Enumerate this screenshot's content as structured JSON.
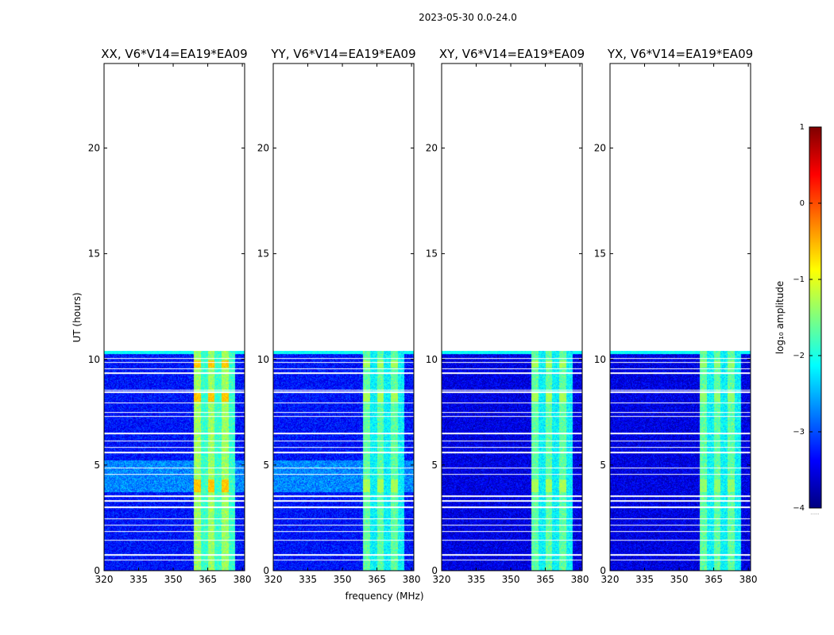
{
  "figure": {
    "suptitle": "2023-05-30 0.0-24.0",
    "xlabel": "frequency (MHz)",
    "ylabel": "UT (hours)"
  },
  "colors": {
    "cmap": [
      "#00007f",
      "#0000ff",
      "#007fff",
      "#00ffff",
      "#7fff7f",
      "#ffff00",
      "#ff7f00",
      "#ff0000",
      "#7f0000"
    ],
    "gap": "#ffffff",
    "axes": "#000000"
  },
  "chart_data": [
    {
      "type": "heatmap",
      "title": "XX, V6*V14=EA19*EA09",
      "xlim": [
        320,
        381
      ],
      "ylim": [
        0,
        24
      ],
      "xticks": [
        320,
        335,
        350,
        365,
        380
      ],
      "yticks": [
        0,
        5,
        10,
        15,
        20
      ],
      "data_ut_range": [
        0,
        10.4
      ],
      "bright_band_mhz": [
        359,
        377
      ],
      "background_log10_amp": -3.3,
      "band_log10_amp": -1.5,
      "peak_log10_amp": -0.6,
      "elevated_background_ut": [
        [
          3.7,
          5.2
        ]
      ],
      "gaps_ut": [
        0.5,
        0.75,
        1.45,
        1.85,
        2.15,
        2.45,
        3.0,
        3.3,
        3.5,
        3.55,
        4.55,
        4.85,
        5.6,
        5.85,
        6.15,
        6.5,
        7.3,
        7.5,
        7.95,
        8.45,
        8.55,
        9.35,
        9.55,
        9.85,
        10.05
      ]
    },
    {
      "type": "heatmap",
      "title": "YY, V6*V14=EA19*EA09",
      "xlim": [
        320,
        381
      ],
      "ylim": [
        0,
        24
      ],
      "xticks": [
        320,
        335,
        350,
        365,
        380
      ],
      "yticks": [
        0,
        5,
        10,
        15,
        20
      ],
      "data_ut_range": [
        0,
        10.4
      ],
      "bright_band_mhz": [
        359,
        377
      ],
      "background_log10_amp": -3.3,
      "band_log10_amp": -1.8,
      "peak_log10_amp": -1.3,
      "elevated_background_ut": [
        [
          3.7,
          5.2
        ]
      ],
      "gaps_ut": [
        0.5,
        0.75,
        1.45,
        1.85,
        2.15,
        2.45,
        3.0,
        3.3,
        3.5,
        3.55,
        4.55,
        4.85,
        5.6,
        5.85,
        6.15,
        6.5,
        7.3,
        7.5,
        7.95,
        8.45,
        8.55,
        9.35,
        9.55,
        9.85,
        10.05
      ]
    },
    {
      "type": "heatmap",
      "title": "XY, V6*V14=EA19*EA09",
      "xlim": [
        320,
        381
      ],
      "ylim": [
        0,
        24
      ],
      "xticks": [
        320,
        335,
        350,
        365,
        380
      ],
      "yticks": [
        0,
        5,
        10,
        15,
        20
      ],
      "data_ut_range": [
        0,
        10.4
      ],
      "bright_band_mhz": [
        359,
        377
      ],
      "background_log10_amp": -3.5,
      "band_log10_amp": -1.8,
      "peak_log10_amp": -1.3,
      "elevated_background_ut": [],
      "gaps_ut": [
        0.5,
        0.75,
        1.45,
        1.85,
        2.15,
        2.45,
        3.0,
        3.3,
        3.5,
        3.55,
        4.55,
        4.85,
        5.6,
        5.85,
        6.15,
        6.5,
        7.3,
        7.5,
        7.95,
        8.45,
        8.55,
        9.35,
        9.55,
        9.85,
        10.05
      ]
    },
    {
      "type": "heatmap",
      "title": "YX, V6*V14=EA19*EA09",
      "xlim": [
        320,
        381
      ],
      "ylim": [
        0,
        24
      ],
      "xticks": [
        320,
        335,
        350,
        365,
        380
      ],
      "yticks": [
        0,
        5,
        10,
        15,
        20
      ],
      "data_ut_range": [
        0,
        10.4
      ],
      "bright_band_mhz": [
        359,
        377
      ],
      "background_log10_amp": -3.5,
      "band_log10_amp": -1.8,
      "peak_log10_amp": -1.4,
      "elevated_background_ut": [],
      "gaps_ut": [
        0.5,
        0.75,
        1.45,
        1.85,
        2.15,
        2.45,
        3.0,
        3.3,
        3.5,
        3.55,
        4.55,
        4.85,
        5.6,
        5.85,
        6.15,
        6.5,
        7.3,
        7.5,
        7.95,
        8.45,
        8.55,
        9.35,
        9.55,
        9.85,
        10.05
      ]
    }
  ],
  "colorbar": {
    "label": "log₁₀ amplitude",
    "range": [
      -4,
      1
    ],
    "ticks": [
      1,
      0,
      -1,
      -2,
      -3,
      -4
    ],
    "tick_labels": [
      "1",
      "0",
      "−1",
      "−2",
      "−3",
      "−4"
    ],
    "footnote": "......"
  }
}
